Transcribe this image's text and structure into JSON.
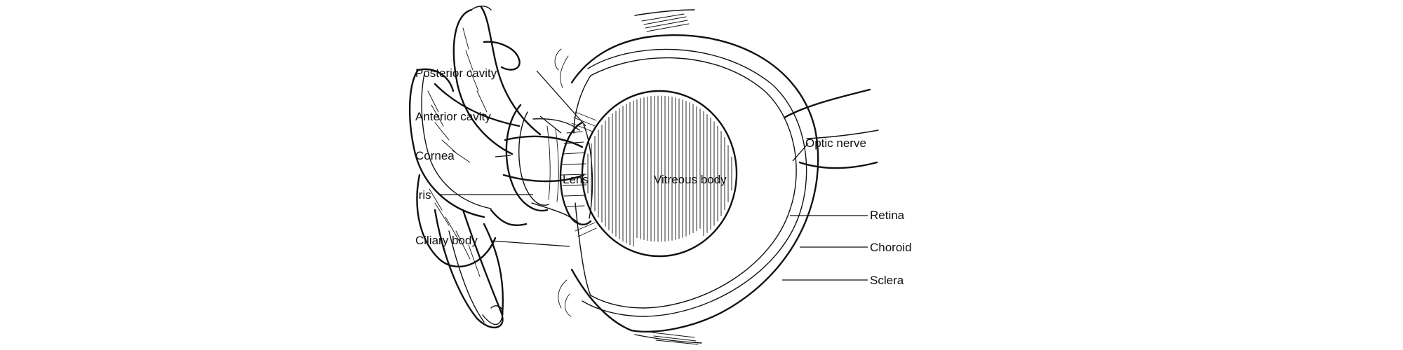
{
  "diagram": {
    "labels": {
      "posterior_cavity": "Posterior cavity",
      "anterior_cavity": "Anterior cavity",
      "cornea": "Cornea",
      "iris": "Iris",
      "ciliary_body": "Ciliary body",
      "lens": "Lens",
      "vitreous_body": "Vitreous body",
      "optic_nerve": "Optic nerve",
      "retina": "Retina",
      "choroid": "Choroid",
      "sclera": "Sclera"
    },
    "colors": {
      "ink": "#111111",
      "background": "#ffffff"
    }
  }
}
